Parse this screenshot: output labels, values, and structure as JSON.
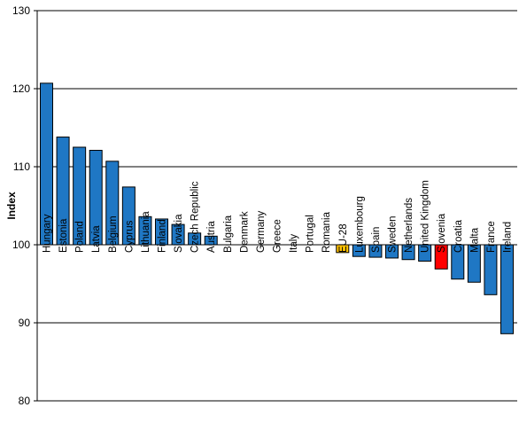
{
  "chart_data": {
    "type": "bar",
    "title": "",
    "xlabel": "",
    "ylabel": "Index",
    "ylim": [
      80,
      130
    ],
    "yticks": [
      80,
      90,
      100,
      110,
      120,
      130
    ],
    "baseline": 100,
    "grid": true,
    "categories": [
      "Hungary",
      "Estonia",
      "Poland",
      "Latvia",
      "Belgium",
      "Cyprus",
      "Lithuania",
      "Finland",
      "Slovakia",
      "Czech Republic",
      "Austria",
      "Bulgaria",
      "Denmark",
      "Germany",
      "Greece",
      "Italy",
      "Portugal",
      "Romania",
      "EU-28",
      "Luxembourg",
      "Spain",
      "Sweden",
      "Netherlands",
      "United Kingdom",
      "Slovenia",
      "Croatia",
      "Malta",
      "France",
      "Ireland"
    ],
    "values": [
      120.7,
      113.8,
      112.5,
      112.1,
      110.7,
      107.4,
      103.6,
      103.3,
      102.6,
      101.5,
      101.1,
      100,
      100,
      100,
      100,
      100,
      100,
      100,
      99.0,
      98.5,
      98.4,
      98.3,
      98.1,
      97.9,
      96.9,
      95.6,
      95.2,
      93.6,
      88.6
    ],
    "colors": {
      "default": "#1f77c4",
      "highlight_eu": "#ffc000",
      "highlight_country": "#ff0000"
    },
    "highlights": {
      "EU-28": "highlight_eu",
      "Slovenia": "highlight_country"
    }
  }
}
